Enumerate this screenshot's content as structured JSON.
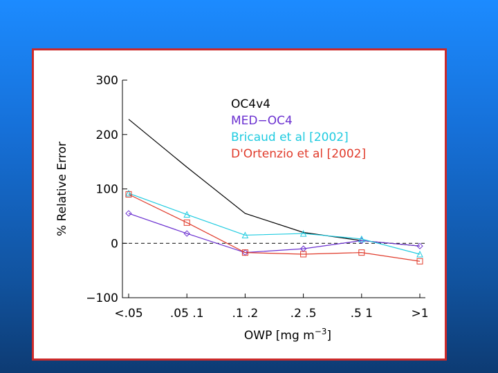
{
  "chart_data": {
    "type": "line",
    "categories": [
      "<.05",
      ".05 .1",
      ".1 .2",
      ".2 .5",
      ".5 1",
      ">1"
    ],
    "ylabel": "% Relative Error",
    "xlabel": "OWP [mg m−3]",
    "xlabel_parts": [
      "OWP [mg m",
      "−3",
      "]"
    ],
    "ylim": [
      -100,
      300
    ],
    "yticks": [
      -100,
      0,
      100,
      200,
      300
    ],
    "ytick_labels": [
      "−100",
      "0",
      "100",
      "200",
      "300"
    ],
    "grid": false,
    "legend_position": "top-right",
    "reference_line": 0,
    "series": [
      {
        "name": "OC4v4",
        "color": "#000000",
        "marker": "none",
        "dash": "solid",
        "x": [
          0,
          1,
          2,
          3,
          4,
          5
        ],
        "values": [
          228,
          140,
          55,
          20,
          5,
          -5
        ]
      },
      {
        "name": "MED−OC4",
        "color": "#6a2fd0",
        "marker": "diamond",
        "dash": "solid",
        "x": [
          0,
          1,
          2,
          3,
          4,
          5
        ],
        "values": [
          55,
          18,
          -17,
          -10,
          5,
          -5
        ]
      },
      {
        "name": "Bricaud et al [2002]",
        "color": "#1ecbe0",
        "marker": "triangle",
        "dash": "solid",
        "x": [
          0,
          1,
          2,
          3,
          4,
          5
        ],
        "values": [
          92,
          53,
          15,
          18,
          8,
          -20
        ]
      },
      {
        "name": "D'Ortenzio et al [2002]",
        "color": "#e03a2a",
        "marker": "square",
        "dash": "solid",
        "x": [
          0,
          1,
          2,
          3,
          4,
          5
        ],
        "values": [
          90,
          38,
          -17,
          -20,
          -17,
          -33
        ]
      }
    ]
  }
}
